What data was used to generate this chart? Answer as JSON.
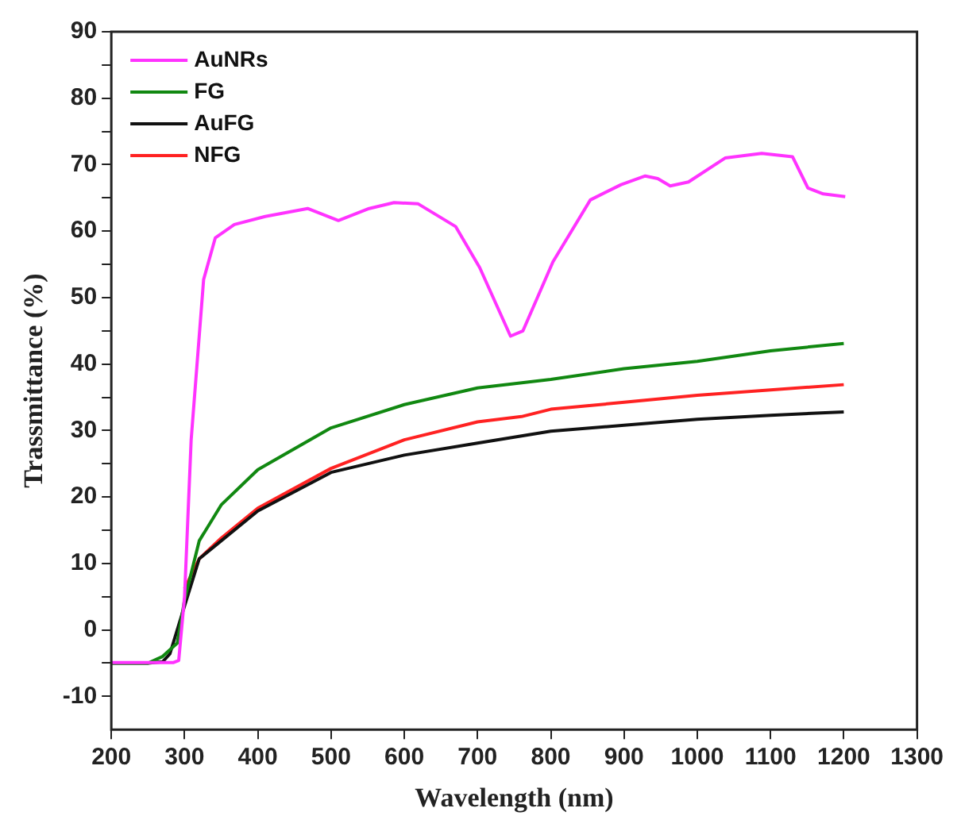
{
  "chart_data": {
    "type": "line",
    "xlabel": "Wavelength (nm)",
    "ylabel": "Trassmittance (%)",
    "xlim": [
      200,
      1300
    ],
    "xticks": [
      200,
      300,
      400,
      500,
      600,
      700,
      800,
      900,
      1000,
      1100,
      1200,
      1300
    ],
    "ylim": [
      -15,
      90
    ],
    "yticks": [
      -10,
      {
        "value": -5,
        "label": null
      },
      0,
      {
        "value": 5,
        "label": null
      },
      10,
      {
        "value": 15,
        "label": null
      },
      20,
      {
        "value": 25,
        "label": null
      },
      30,
      {
        "value": 35,
        "label": null
      },
      40,
      {
        "value": 45,
        "label": null
      },
      50,
      {
        "value": 55,
        "label": null
      },
      60,
      {
        "value": 65,
        "label": null
      },
      70,
      {
        "value": 75,
        "label": null
      },
      80,
      {
        "value": 85,
        "label": null
      },
      90
    ],
    "grid": false,
    "legend": "top left",
    "marker": "none",
    "line_style": "solid",
    "series": [
      {
        "name": "AuNRs",
        "color": "#ff33ff",
        "x": [
          200,
          250,
          285,
          292,
          300,
          309,
          326,
          342,
          368,
          410,
          468,
          510,
          552,
          586,
          619,
          670,
          703,
          745,
          762,
          803,
          854,
          896,
          929,
          946,
          963,
          988,
          1038,
          1088,
          1130,
          1151,
          1172,
          1202
        ],
        "values": [
          -4.9,
          -4.9,
          -4.9,
          -4.6,
          5,
          28.6,
          52.7,
          59,
          61,
          62.2,
          63.4,
          61.6,
          63.4,
          64.3,
          64.1,
          60.7,
          54.5,
          44.2,
          45,
          55.4,
          64.7,
          67,
          68.3,
          67.9,
          66.8,
          67.4,
          71,
          71.7,
          71.2,
          66.5,
          65.6,
          65.2
        ]
      },
      {
        "name": "FG",
        "color": "#118811",
        "x": [
          200,
          250,
          270,
          290,
          300,
          320,
          350,
          400,
          500,
          600,
          700,
          800,
          900,
          1000,
          1100,
          1200
        ],
        "values": [
          -5,
          -5,
          -4,
          -2,
          4.5,
          13.4,
          18.8,
          24.1,
          30.4,
          33.9,
          36.4,
          37.7,
          39.3,
          40.4,
          42,
          43.1
        ]
      },
      {
        "name": "AuFG",
        "color": "#111111",
        "x": [
          200,
          250,
          270,
          280,
          300,
          320,
          350,
          400,
          500,
          600,
          700,
          800,
          900,
          1000,
          1100,
          1200
        ],
        "values": [
          -5,
          -5,
          -4.8,
          -3.6,
          3.6,
          10.7,
          13.4,
          17.9,
          23.7,
          26.3,
          28.1,
          29.9,
          30.8,
          31.7,
          32.3,
          32.8
        ]
      },
      {
        "name": "NFG",
        "color": "#ff2222",
        "x": [
          300,
          320,
          350,
          400,
          500,
          600,
          700,
          760,
          800,
          1000,
          1200
        ],
        "values": [
          6.2,
          10.7,
          13.8,
          18.3,
          24.3,
          28.6,
          31.3,
          32.1,
          33.2,
          35.3,
          36.9
        ]
      }
    ]
  }
}
